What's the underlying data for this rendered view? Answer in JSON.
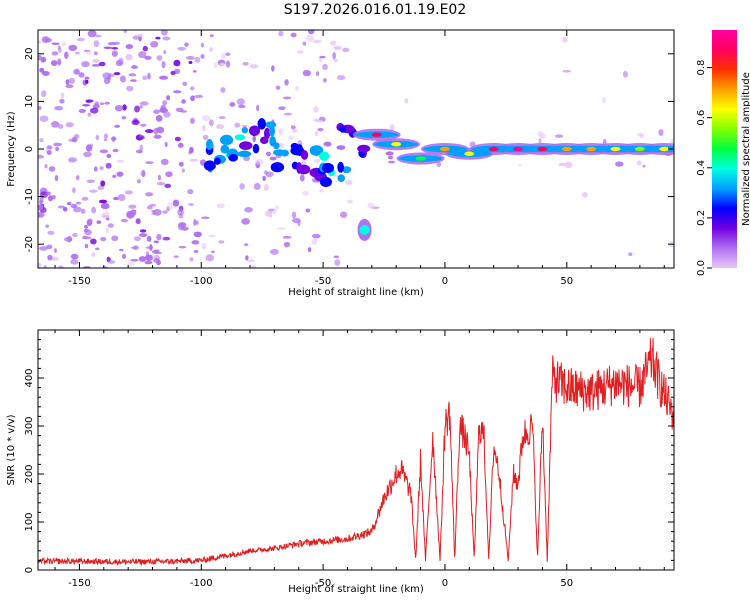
{
  "title": "S197.2026.016.01.19.E02",
  "chart_data": [
    {
      "type": "heatmap",
      "xlabel": "Height of straight line (km)",
      "ylabel": "Frequency (Hz)",
      "xlim": [
        -167,
        94
      ],
      "ylim": [
        -25,
        25
      ],
      "xticks": [
        -150,
        -100,
        -50,
        0,
        50
      ],
      "yticks": [
        -20,
        -10,
        0,
        10,
        20
      ],
      "colorbar": {
        "label": "Normalized spectral amplitude",
        "range": [
          0.0,
          0.95
        ],
        "ticks": [
          0.0,
          0.2,
          0.4,
          0.6,
          0.8
        ],
        "tick_labels": [
          "0.0",
          "0.2",
          "0.4",
          "0.6",
          "0.8"
        ],
        "colors": [
          "#e8c8f8",
          "#b070f0",
          "#7000e0",
          "#0000ff",
          "#00a0ff",
          "#00ffe0",
          "#00ff40",
          "#80ff00",
          "#ffff00",
          "#ffa000",
          "#ff3000",
          "#ff0060",
          "#ff00a0"
        ]
      },
      "signal_track": {
        "x": [
          -28,
          -20,
          -10,
          0,
          10,
          20,
          30,
          40,
          50,
          60,
          70,
          80,
          90
        ],
        "frequency": [
          3,
          1,
          -2,
          0,
          -1,
          0,
          0,
          0,
          0,
          0,
          0,
          0,
          0
        ],
        "amplitude": [
          0.85,
          0.6,
          0.5,
          0.7,
          0.6,
          0.9,
          0.95,
          0.85,
          0.7,
          0.75,
          0.6,
          0.55,
          0.6
        ]
      },
      "weak_track": {
        "x": [
          -95,
          -85,
          -75,
          -65,
          -55,
          -45,
          -38
        ],
        "frequency": [
          -2,
          1,
          3,
          -2,
          -3,
          -4,
          2
        ],
        "amplitude": [
          0.3,
          0.35,
          0.3,
          0.35,
          0.3,
          0.35,
          0.3
        ]
      },
      "isolated_blob": {
        "x": -33,
        "frequency": -17,
        "amplitude": 0.4
      }
    },
    {
      "type": "line",
      "xlabel": "Height of straight line (km)",
      "ylabel": "SNR (10 * v/v)",
      "xlim": [
        -167,
        94
      ],
      "ylim": [
        0,
        500
      ],
      "xticks": [
        -150,
        -100,
        -50,
        0,
        50
      ],
      "yticks": [
        0,
        100,
        200,
        300,
        400
      ],
      "series": [
        {
          "name": "SNR",
          "color": "#e02020",
          "x": [
            -167,
            -150,
            -130,
            -110,
            -100,
            -90,
            -80,
            -70,
            -60,
            -50,
            -40,
            -30,
            -25,
            -20,
            -18,
            -14,
            -12,
            -10,
            -8,
            -5,
            -2,
            0,
            2,
            4,
            6,
            8,
            10,
            12,
            14,
            16,
            18,
            20,
            22,
            26,
            28,
            30,
            32,
            36,
            38,
            40,
            42,
            44,
            50,
            60,
            70,
            80,
            85,
            88,
            94
          ],
          "y": [
            18,
            18,
            17,
            18,
            20,
            30,
            40,
            45,
            55,
            60,
            65,
            80,
            150,
            200,
            210,
            160,
            20,
            230,
            20,
            280,
            20,
            300,
            330,
            20,
            300,
            280,
            240,
            20,
            300,
            280,
            20,
            260,
            210,
            20,
            200,
            180,
            280,
            300,
            20,
            320,
            20,
            400,
            380,
            370,
            390,
            380,
            440,
            390,
            320
          ]
        }
      ]
    }
  ]
}
